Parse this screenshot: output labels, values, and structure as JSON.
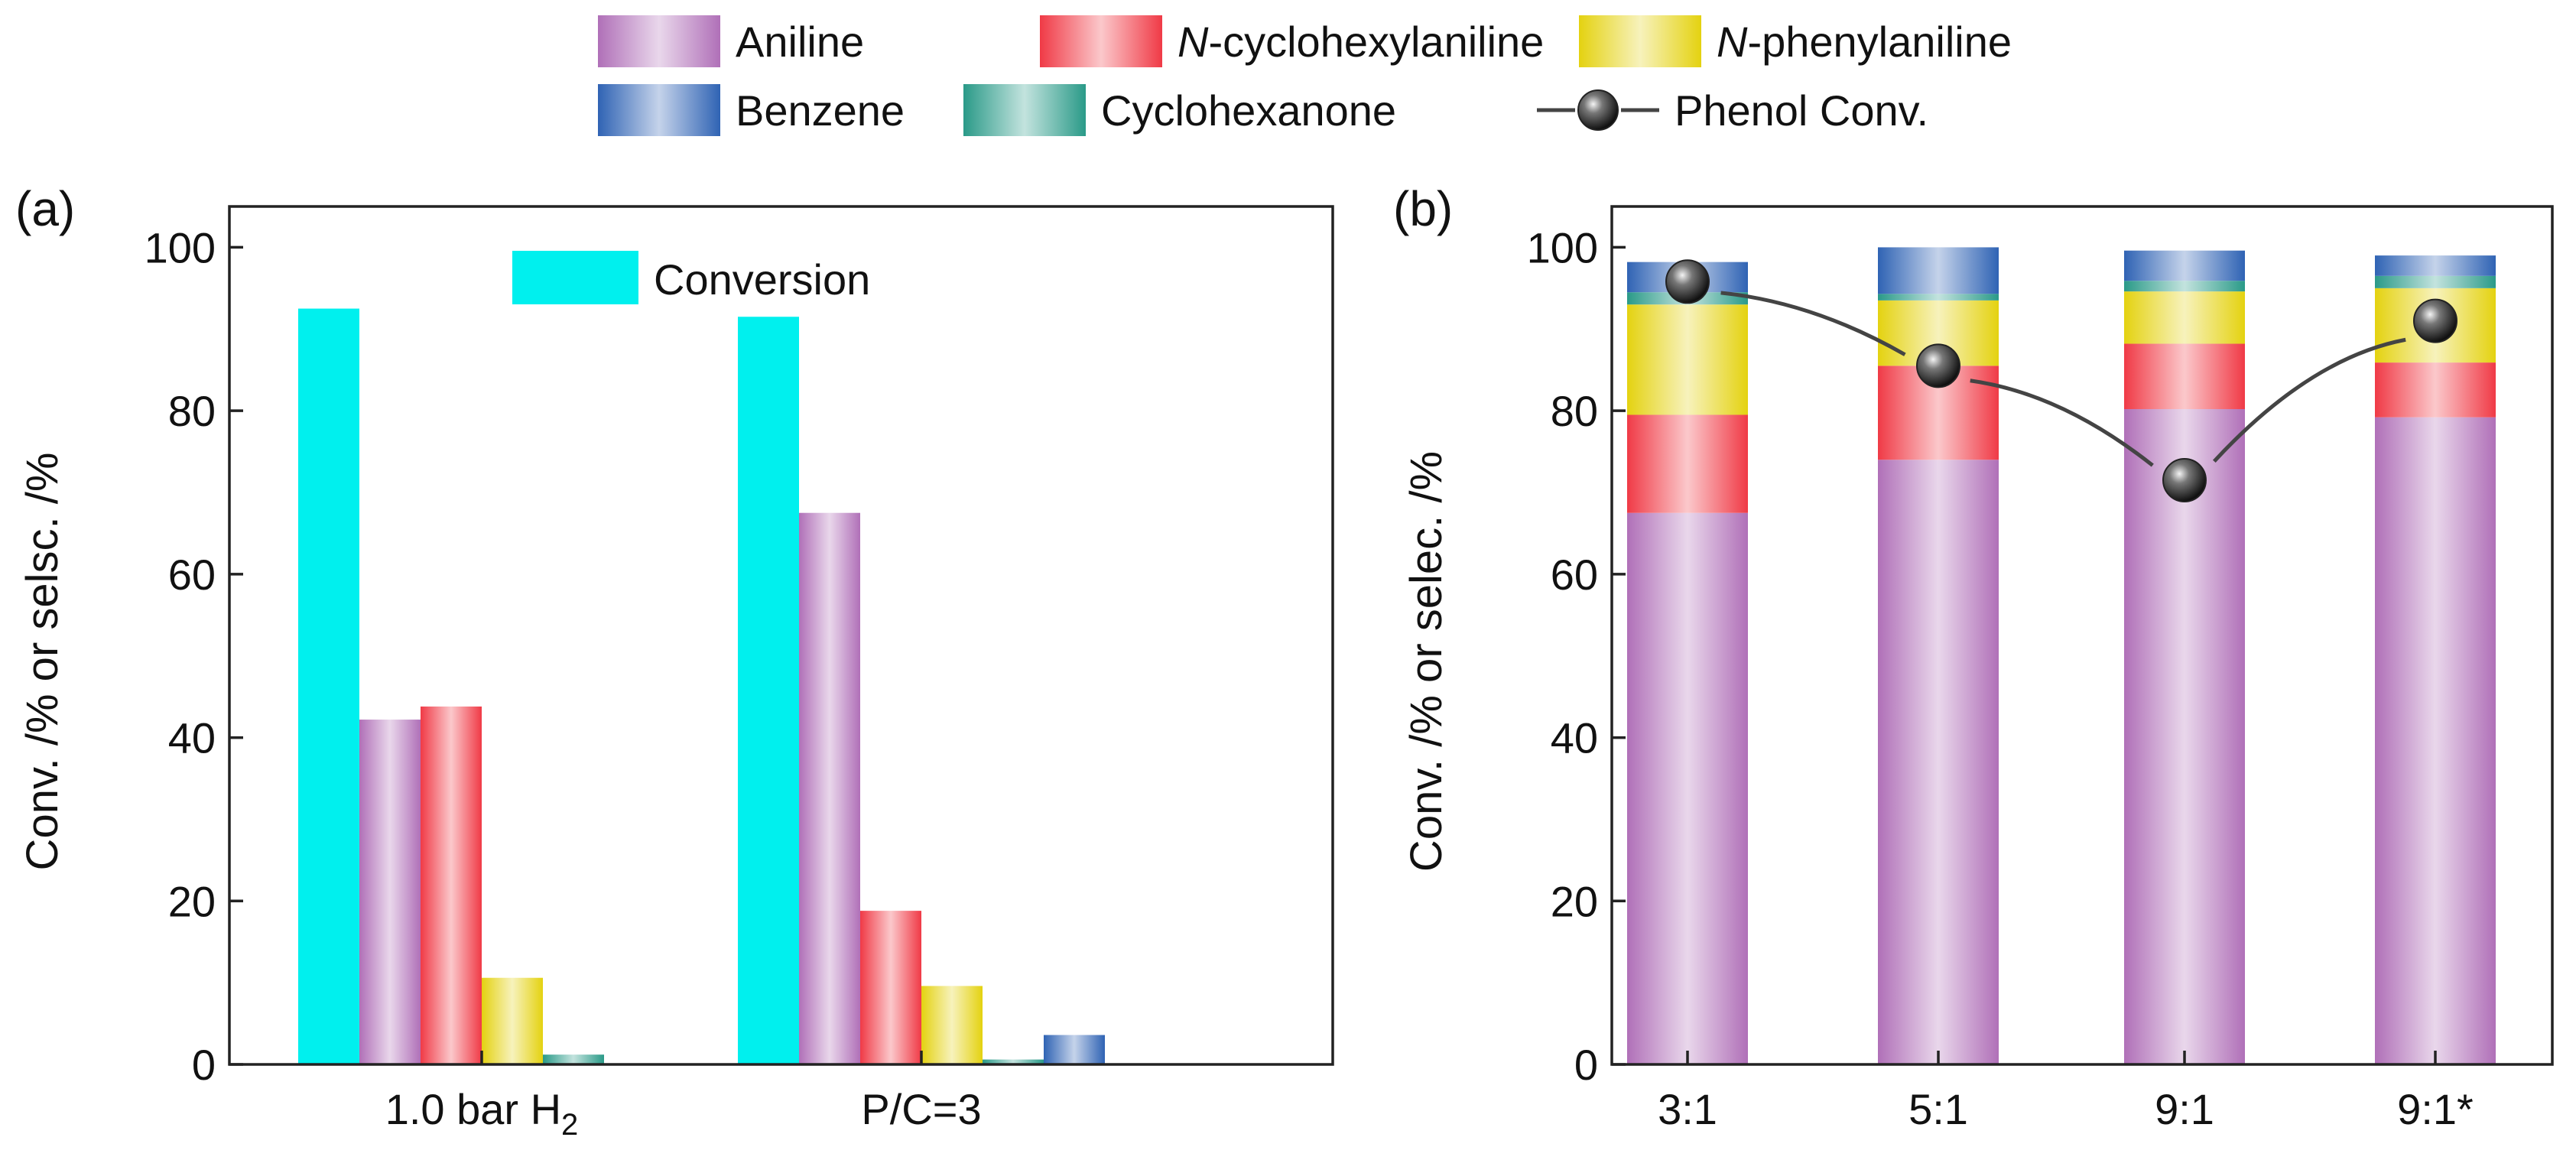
{
  "legend": {
    "items": [
      {
        "key": "aniline",
        "prefix": "",
        "label": "Aniline"
      },
      {
        "key": "ncha",
        "prefix": "N",
        "label": "-cyclohexylaniline"
      },
      {
        "key": "npa",
        "prefix": "N",
        "label": "-phenylaniline"
      },
      {
        "key": "benzene",
        "prefix": "",
        "label": "Benzene"
      },
      {
        "key": "cyclohexanone",
        "prefix": "",
        "label": "Cyclohexanone"
      },
      {
        "key": "phenol",
        "prefix": "",
        "label": "Phenol Conv."
      }
    ]
  },
  "colors": {
    "conversion": "#00f0ee",
    "aniline": "#b070b8",
    "ncha": "#f03a46",
    "npa": "#e4d210",
    "benzene": "#2f63b4",
    "cyclohexanone": "#2a9a88",
    "phenol_line": "#444444"
  },
  "chart_data": [
    {
      "type": "bar",
      "panel": "(a)",
      "ylabel": "Conv. /% or selsc. /%",
      "ylim": [
        0,
        105
      ],
      "yticks": [
        0,
        20,
        40,
        60,
        80,
        100
      ],
      "categories": [
        {
          "main": "1.0 bar H",
          "sub": "2"
        },
        {
          "main": "P/C=3",
          "sub": ""
        }
      ],
      "inner_legend": "Conversion",
      "series": [
        {
          "name": "Conversion",
          "key": "conversion",
          "values": [
            92.5,
            91.5
          ]
        },
        {
          "name": "Aniline",
          "key": "aniline",
          "values": [
            42.2,
            67.5
          ]
        },
        {
          "name": "N-cyclohexylaniline",
          "key": "ncha",
          "values": [
            43.8,
            18.8
          ]
        },
        {
          "name": "N-phenylaniline",
          "key": "npa",
          "values": [
            10.6,
            9.6
          ]
        },
        {
          "name": "Cyclohexanone",
          "key": "cyclohexanone",
          "values": [
            1.2,
            0.6
          ]
        },
        {
          "name": "Benzene",
          "key": "benzene",
          "values": [
            0,
            3.6
          ]
        }
      ]
    },
    {
      "type": "bar",
      "stacked": true,
      "panel": "(b)",
      "ylabel": "Conv. /% or selec. /%",
      "ylim": [
        0,
        105
      ],
      "yticks": [
        0,
        20,
        40,
        60,
        80,
        100
      ],
      "categories": [
        {
          "main": "3:1",
          "sub": ""
        },
        {
          "main": "5:1",
          "sub": ""
        },
        {
          "main": "9:1",
          "sub": ""
        },
        {
          "main": "9:1*",
          "sub": ""
        }
      ],
      "series": [
        {
          "name": "Aniline",
          "key": "aniline",
          "values": [
            67.5,
            74.0,
            80.2,
            79.2
          ]
        },
        {
          "name": "N-cyclohexylaniline",
          "key": "ncha",
          "values": [
            12.0,
            11.5,
            8.0,
            6.7
          ]
        },
        {
          "name": "N-phenylaniline",
          "key": "npa",
          "values": [
            13.5,
            8.0,
            6.4,
            9.1
          ]
        },
        {
          "name": "Cyclohexanone",
          "key": "cyclohexanone",
          "values": [
            1.5,
            0.8,
            1.3,
            1.5
          ]
        },
        {
          "name": "Benzene",
          "key": "benzene",
          "values": [
            3.7,
            5.7,
            3.7,
            2.5
          ]
        }
      ],
      "line": {
        "name": "Phenol Conv.",
        "key": "phenol",
        "values": [
          95.8,
          85.5,
          71.5,
          91.0
        ]
      }
    }
  ]
}
